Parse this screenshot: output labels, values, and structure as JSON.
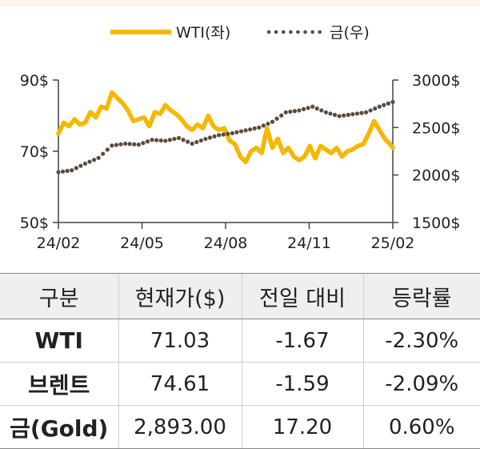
{
  "chart_data": {
    "type": "line",
    "legend": {
      "placement": "top",
      "entries": [
        "WTI(좌)",
        "금(우)"
      ]
    },
    "x_tick_labels": [
      "24/02",
      "24/05",
      "24/08",
      "24/11",
      "25/02"
    ],
    "y_left": {
      "ticks": [
        "90$",
        "70$",
        "50$"
      ],
      "ylim": [
        50,
        90
      ]
    },
    "y_right": {
      "ticks": [
        "3000$",
        "2500$",
        "2000$",
        "1500$"
      ],
      "ylim": [
        1500,
        3000
      ]
    },
    "x_range": [
      0,
      12.5
    ],
    "grid": false,
    "series": [
      {
        "name": "WTI(좌)",
        "axis": "left",
        "color": "#f5b800",
        "style": "solid",
        "x": [
          0,
          0.2,
          0.4,
          0.6,
          0.8,
          1.0,
          1.2,
          1.4,
          1.6,
          1.8,
          2.0,
          2.2,
          2.4,
          2.6,
          2.8,
          3.0,
          3.2,
          3.4,
          3.6,
          3.8,
          4.0,
          4.2,
          4.4,
          4.6,
          4.8,
          5.0,
          5.2,
          5.4,
          5.6,
          5.8,
          6.0,
          6.2,
          6.4,
          6.6,
          6.8,
          7.0,
          7.2,
          7.4,
          7.6,
          7.8,
          8.0,
          8.2,
          8.4,
          8.6,
          8.8,
          9.0,
          9.2,
          9.4,
          9.6,
          9.8,
          10.0,
          10.2,
          10.4,
          10.6,
          10.8,
          11.0,
          11.2,
          11.4,
          11.6,
          11.8,
          12.0,
          12.2,
          12.4,
          12.5
        ],
        "values": [
          75.0,
          78.0,
          77.0,
          79.0,
          77.5,
          78.0,
          81.0,
          79.5,
          82.5,
          82.0,
          86.5,
          85.0,
          83.5,
          81.5,
          78.5,
          79.0,
          79.5,
          77.0,
          81.0,
          80.5,
          83.0,
          81.5,
          80.5,
          79.0,
          77.0,
          76.0,
          77.5,
          76.5,
          80.0,
          77.0,
          76.0,
          76.5,
          73.0,
          72.0,
          68.5,
          67.0,
          70.0,
          71.0,
          69.5,
          76.5,
          71.0,
          73.5,
          69.5,
          71.0,
          68.5,
          67.5,
          68.5,
          71.5,
          68.0,
          71.5,
          70.5,
          69.5,
          71.0,
          68.5,
          70.0,
          70.5,
          71.5,
          72.0,
          75.0,
          78.5,
          76.0,
          73.5,
          72.0,
          71.0
        ]
      },
      {
        "name": "금(우)",
        "axis": "right",
        "color": "#5c4a3e",
        "style": "dotted",
        "x": [
          0,
          0.5,
          1.0,
          1.5,
          2.0,
          2.5,
          3.0,
          3.5,
          4.0,
          4.5,
          5.0,
          5.5,
          6.0,
          6.5,
          7.0,
          7.5,
          8.0,
          8.5,
          9.0,
          9.5,
          10.0,
          10.5,
          11.0,
          11.5,
          12.0,
          12.5
        ],
        "values": [
          2030,
          2050,
          2120,
          2180,
          2310,
          2330,
          2320,
          2370,
          2360,
          2390,
          2330,
          2380,
          2420,
          2440,
          2470,
          2500,
          2560,
          2660,
          2680,
          2720,
          2660,
          2620,
          2640,
          2660,
          2720,
          2770
        ]
      }
    ]
  },
  "table": {
    "headers": [
      "구분",
      "현재가($)",
      "전일 대비",
      "등락률"
    ],
    "rows": [
      [
        "WTI",
        "71.03",
        "-1.67",
        "-2.30%"
      ],
      [
        "브렌트",
        "74.61",
        "-1.59",
        "-2.09%"
      ],
      [
        "금(Gold)",
        "2,893.00",
        "17.20",
        "0.60%"
      ]
    ]
  }
}
